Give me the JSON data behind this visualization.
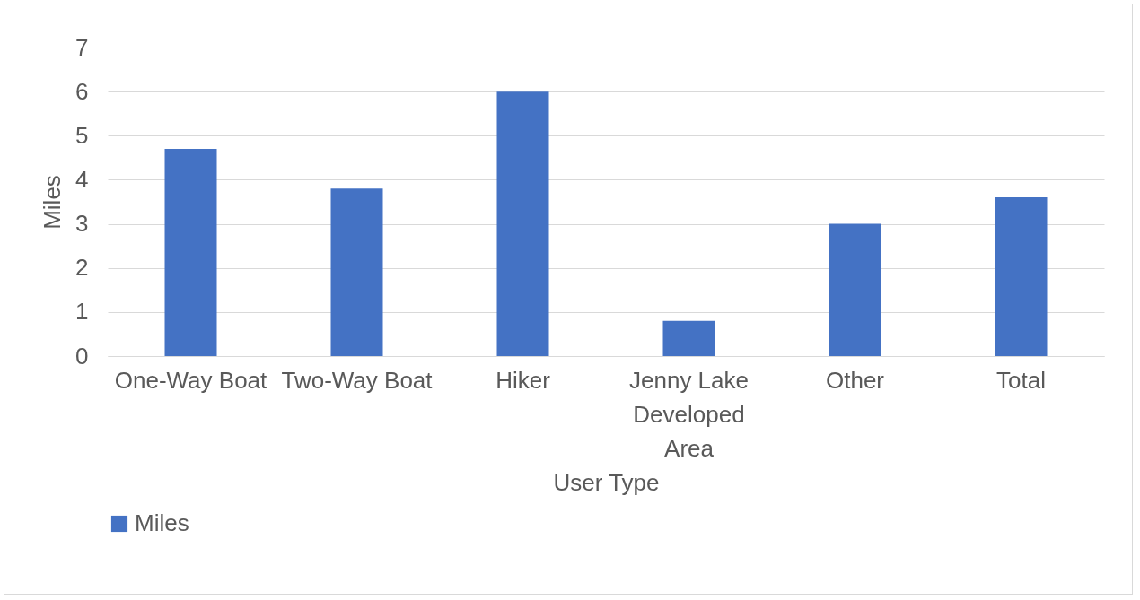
{
  "chart_data": {
    "type": "bar",
    "xlabel": "User Type",
    "ylabel": "Miles",
    "categories": [
      "One-Way Boat",
      "Two-Way Boat",
      "Hiker",
      "Jenny Lake Developed Area",
      "Other",
      "Total"
    ],
    "series": [
      {
        "name": "Miles",
        "color": "#4472c4",
        "values": [
          4.7,
          3.8,
          6.0,
          0.8,
          3.0,
          3.6
        ]
      }
    ],
    "ylim": [
      0,
      7
    ],
    "yticks": [
      0,
      1,
      2,
      3,
      4,
      5,
      6,
      7
    ],
    "grid": "y",
    "legend": "bottom"
  }
}
